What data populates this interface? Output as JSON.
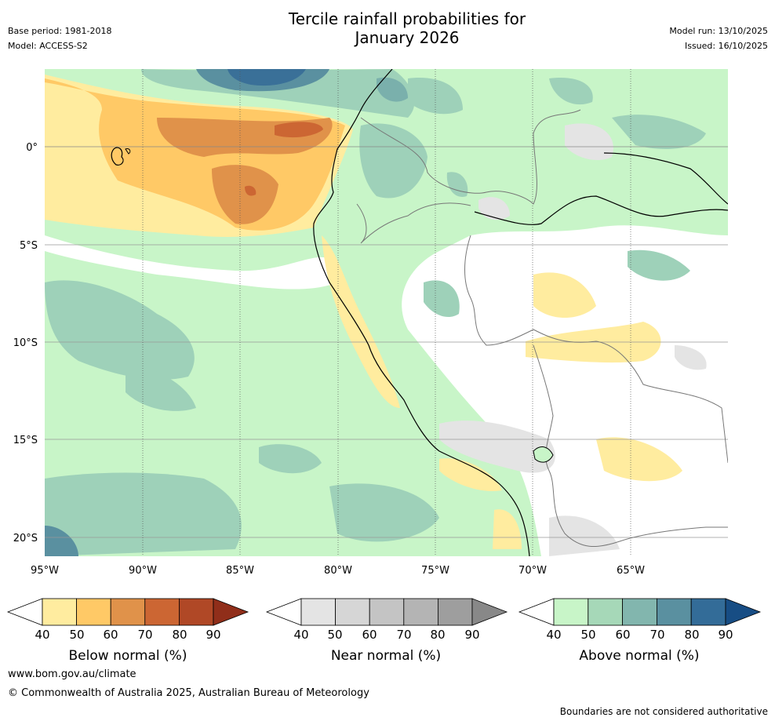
{
  "header": {
    "title_line1": "Tercile rainfall probabilities for",
    "title_line2": "January 2026",
    "base_period": "Base period: 1981-2018",
    "model": "Model: ACCESS-S2",
    "model_run": "Model run: 13/10/2025",
    "issued": "Issued: 16/10/2025"
  },
  "map": {
    "lat_labels": [
      "0°",
      "5°S",
      "10°S",
      "15°S",
      "20°S"
    ],
    "lon_labels": [
      "95°W",
      "90°W",
      "85°W",
      "80°W",
      "75°W",
      "70°W",
      "65°W"
    ],
    "colors": {
      "above": [
        "#c8f5c8",
        "#9ed1b9",
        "#7ab0ac",
        "#5a90a0",
        "#3a7098",
        "#1a5088"
      ],
      "below": [
        "#ffec9f",
        "#ffc966",
        "#e0924a",
        "#cc6633",
        "#b04826",
        "#902e1a"
      ],
      "near": [
        "#e4e4e4",
        "#d6d6d6",
        "#c4c4c4",
        "#b4b4b4",
        "#9e9e9e",
        "#888888"
      ]
    }
  },
  "legend": {
    "below": {
      "label": "Below normal (%)",
      "ticks": [
        "40",
        "50",
        "60",
        "70",
        "80",
        "90"
      ],
      "colors": [
        "#ffec9f",
        "#ffc966",
        "#e0924a",
        "#cc6633",
        "#b04826",
        "#902e1a"
      ]
    },
    "near": {
      "label": "Near normal (%)",
      "ticks": [
        "40",
        "50",
        "60",
        "70",
        "80",
        "90"
      ],
      "colors": [
        "#e4e4e4",
        "#d6d6d6",
        "#c4c4c4",
        "#b4b4b4",
        "#9e9e9e",
        "#888888"
      ]
    },
    "above": {
      "label": "Above normal (%)",
      "ticks": [
        "40",
        "50",
        "60",
        "70",
        "80",
        "90"
      ],
      "colors": [
        "#c8f5c8",
        "#a6d8b8",
        "#82b6ae",
        "#5a90a0",
        "#336c98",
        "#174d84"
      ]
    }
  },
  "footer": {
    "website": "www.bom.gov.au/climate",
    "copyright": "© Commonwealth of Australia 2025, Australian Bureau of Meteorology",
    "disclaimer": "Boundaries are not considered authoritative"
  }
}
